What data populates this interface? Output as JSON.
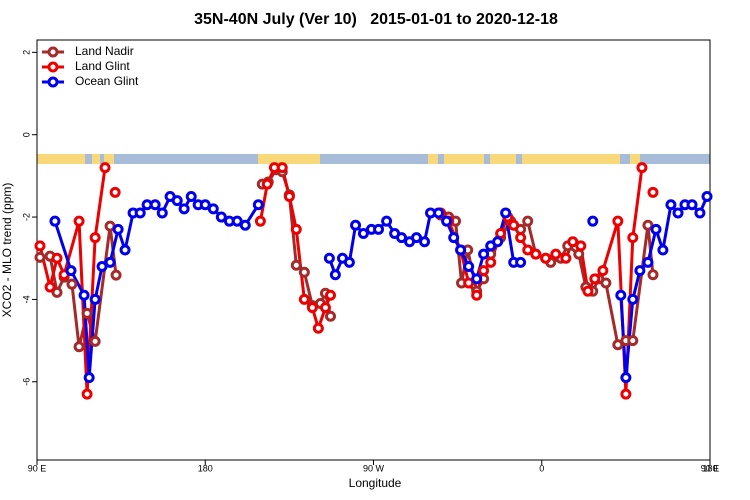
{
  "chart_data": {
    "type": "line",
    "title": "35N-40N July (Ver 10)   2015-01-01 to 2020-12-18",
    "x_label": "Longitude",
    "y_label": "XCO2 - MLO trend (ppm)",
    "xlim": [
      90,
      450
    ],
    "ylim": [
      -7.9,
      2.3
    ],
    "xticks": [
      {
        "value": 90,
        "label": "90 E"
      },
      {
        "value": 180,
        "label": "180"
      },
      {
        "value": 270,
        "label": "90 W"
      },
      {
        "value": 360,
        "label": "0"
      },
      {
        "value": 450,
        "label": "90 E"
      }
    ],
    "xticks_extra": [
      {
        "value": 450,
        "label": "180"
      }
    ],
    "yticks": [
      2,
      0,
      -2,
      -4,
      -6
    ],
    "legend": "top-left",
    "series": [
      {
        "name": "Land Nadir",
        "color": "#a52a2a",
        "x": [
          91.6,
          97,
          100.7,
          104.5,
          108.7,
          112.5,
          116.8,
          121.1,
          129.1,
          132.3,
          null,
          210.5,
          213.7,
          218,
          221.2,
          225,
          228.7,
          233,
          237.3,
          241.6,
          244.3,
          247,
          null,
          305.9,
          310.2,
          313.9,
          317.1,
          320.4,
          325.2,
          328.9,
          332.7,
          338,
          343.4,
          348.7,
          352.5,
          356.8,
          362.1,
          364.8,
          370.2,
          373.9,
          379.8,
          383.6,
          387.3,
          390.5,
          394.3,
          400.7,
          405,
          408.7,
          416.8,
          419.5
        ],
        "values": [
          -2.98,
          -2.95,
          -3.83,
          -3.46,
          -3.63,
          -5.15,
          -4.34,
          -5.02,
          -2.22,
          -3.41,
          null,
          -1.2,
          -1.15,
          -0.85,
          -0.9,
          -1.46,
          -3.17,
          -3.34,
          -4.15,
          -4.1,
          -3.85,
          -4.41,
          null,
          -1.95,
          -2.0,
          -2.1,
          -3.6,
          -2.8,
          -3.8,
          -3.5,
          -2.9,
          -2.5,
          -2.1,
          -2.3,
          -2.1,
          -2.9,
          -3.0,
          -3.1,
          -3.0,
          -2.7,
          -2.9,
          -3.7,
          -3.8,
          -3.5,
          -3.6,
          -5.1,
          -5.0,
          -5.0,
          -2.2,
          -3.4
        ]
      },
      {
        "name": "Land Glint",
        "color": "#ee0000",
        "x": [
          91.6,
          97,
          100.7,
          104.5,
          112.5,
          116.8,
          121.1,
          126.4,
          null,
          131.8,
          null,
          209.5,
          213.2,
          217,
          221.2,
          225,
          228.7,
          233,
          237.3,
          240.5,
          244.3,
          247,
          null,
          305.9,
          310.2,
          316.6,
          320.9,
          325.2,
          328.9,
          332.7,
          338,
          341.8,
          345,
          348.7,
          352.5,
          356.8,
          362.1,
          367.5,
          372.9,
          376.6,
          380.9,
          384.7,
          388.4,
          392.7,
          400.7,
          405,
          408.7,
          413.6,
          null,
          419.5
        ],
        "values": [
          -2.7,
          -3.7,
          -3.0,
          -3.4,
          -2.1,
          -6.3,
          -2.5,
          -0.8,
          null,
          -1.4,
          null,
          -2.1,
          -1.2,
          -0.8,
          -0.8,
          -1.5,
          -2.3,
          -4.0,
          -4.2,
          -4.7,
          -4.2,
          -3.9,
          null,
          -1.9,
          -2.1,
          -2.8,
          -3.6,
          -3.9,
          -3.3,
          -3.1,
          -2.4,
          -2.0,
          -2.2,
          -2.5,
          -2.8,
          -2.9,
          -3.0,
          -2.9,
          -3.0,
          -2.6,
          -2.7,
          -3.8,
          -3.5,
          -3.3,
          -2.1,
          -6.3,
          -2.5,
          -0.8,
          null,
          -1.4
        ]
      },
      {
        "name": "Ocean Glint",
        "color": "#0000ee",
        "x": [
          99.6,
          108.2,
          115.2,
          117.9,
          121.1,
          124.8,
          129.1,
          133.4,
          137.1,
          141.4,
          145.2,
          148.9,
          153.2,
          157,
          161.2,
          165,
          168.7,
          172.5,
          176.2,
          180,
          184.3,
          188.6,
          192.9,
          197.1,
          201.4,
          208.4,
          null,
          246.4,
          249.6,
          253.4,
          257.1,
          260.4,
          264.6,
          268.9,
          272.7,
          277,
          281.3,
          285,
          289.3,
          293,
          297.3,
          300.5,
          304.8,
          309.1,
          312.9,
          316.6,
          320.9,
          325.2,
          328.9,
          332.7,
          336.4,
          340.7,
          345,
          348.7,
          null,
          387.3,
          null,
          402.3,
          405,
          408.7,
          412.5,
          416.8,
          421.1,
          424.8,
          429.1,
          432.9,
          436.6,
          440.4,
          444.6,
          448.4
        ],
        "values": [
          -2.1,
          -3.3,
          -3.9,
          -5.9,
          -4.0,
          -3.2,
          -3.1,
          -2.3,
          -2.8,
          -1.9,
          -1.9,
          -1.7,
          -1.7,
          -1.9,
          -1.5,
          -1.6,
          -1.8,
          -1.5,
          -1.7,
          -1.7,
          -1.8,
          -2.0,
          -2.1,
          -2.1,
          -2.2,
          -1.7,
          null,
          -3.0,
          -3.4,
          -3.0,
          -3.1,
          -2.2,
          -2.4,
          -2.3,
          -2.3,
          -2.1,
          -2.4,
          -2.5,
          -2.6,
          -2.5,
          -2.6,
          -1.9,
          -1.9,
          -2.1,
          -2.5,
          -2.8,
          -3.2,
          -3.5,
          -2.9,
          -2.7,
          -2.6,
          -1.9,
          -3.1,
          -3.1,
          null,
          -2.1,
          null,
          -3.9,
          -5.9,
          -4.0,
          -3.3,
          -3.1,
          -2.3,
          -2.8,
          -1.7,
          -1.9,
          -1.7,
          -1.7,
          -1.9,
          -1.5
        ]
      }
    ]
  }
}
